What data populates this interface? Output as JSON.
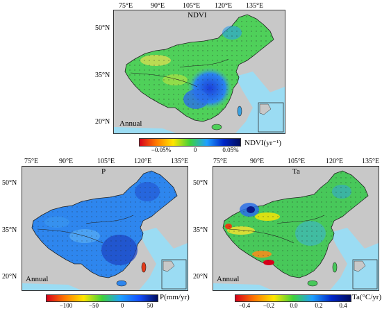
{
  "panels": [
    {
      "id": "ndvi",
      "title": "NDVI",
      "season_label": "Annual",
      "lon_ticks": [
        "75°E",
        "90°E",
        "105°E",
        "120°E",
        "135°E"
      ],
      "lat_ticks": [
        "50°N",
        "35°N",
        "20°N"
      ],
      "colorbar": {
        "title": "NDVI(yr⁻¹)",
        "ticks": [
          "−0.05%",
          "0",
          "0.05%"
        ],
        "colors": [
          "#d7001a",
          "#ff7a00",
          "#ffe600",
          "#3fd13a",
          "#1fa0ff",
          "#0026c8",
          "#000c5e"
        ]
      }
    },
    {
      "id": "precip",
      "title": "P",
      "season_label": "Annual",
      "lon_ticks": [
        "75°E",
        "90°E",
        "105°E",
        "120°E",
        "135°E"
      ],
      "lat_ticks": [
        "50°N",
        "35°N",
        "20°N"
      ],
      "colorbar": {
        "title": "P(mm/yr)",
        "ticks": [
          "−100",
          "−50",
          "0",
          "50"
        ],
        "colors": [
          "#d7001a",
          "#ff7a00",
          "#ffe600",
          "#3fd13a",
          "#1fa0ff",
          "#1550ff",
          "#000c5e"
        ]
      }
    },
    {
      "id": "temp",
      "title": "Ta",
      "season_label": "Annual",
      "lon_ticks": [
        "75°E",
        "90°E",
        "105°E",
        "120°E",
        "135°E"
      ],
      "lat_ticks": [
        "50°N",
        "35°N",
        "20°N"
      ],
      "colorbar": {
        "title": "Ta(°C/yr)",
        "ticks": [
          "−0.4",
          "−0.2",
          "0.0",
          "0.2",
          "0.4"
        ],
        "colors": [
          "#d7001a",
          "#ff7a00",
          "#ffe600",
          "#3fd13a",
          "#1fa0ff",
          "#0026c8",
          "#000c5e"
        ]
      }
    }
  ]
}
